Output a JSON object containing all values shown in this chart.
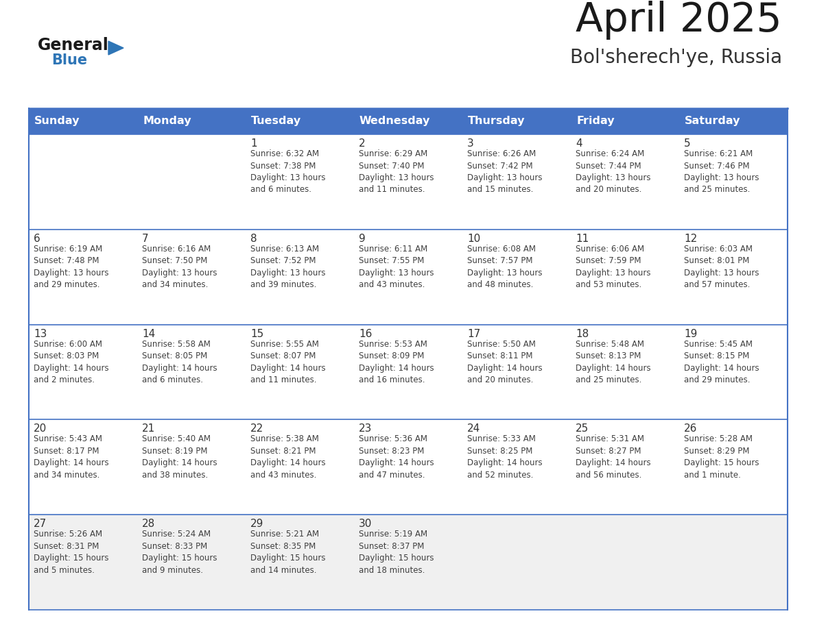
{
  "title": "April 2025",
  "subtitle": "Bol'sherech'ye, Russia",
  "days_of_week": [
    "Sunday",
    "Monday",
    "Tuesday",
    "Wednesday",
    "Thursday",
    "Friday",
    "Saturday"
  ],
  "header_bg": "#4472C4",
  "header_text": "#FFFFFF",
  "cell_bg_white": "#FFFFFF",
  "cell_bg_gray": "#F0F0F0",
  "row_border_color": "#4472C4",
  "outer_border_color": "#4472C4",
  "day_number_color": "#333333",
  "cell_text_color": "#404040",
  "title_color": "#1a1a1a",
  "subtitle_color": "#333333",
  "weeks": [
    [
      {
        "day": null,
        "info": null
      },
      {
        "day": null,
        "info": null
      },
      {
        "day": 1,
        "info": "Sunrise: 6:32 AM\nSunset: 7:38 PM\nDaylight: 13 hours\nand 6 minutes."
      },
      {
        "day": 2,
        "info": "Sunrise: 6:29 AM\nSunset: 7:40 PM\nDaylight: 13 hours\nand 11 minutes."
      },
      {
        "day": 3,
        "info": "Sunrise: 6:26 AM\nSunset: 7:42 PM\nDaylight: 13 hours\nand 15 minutes."
      },
      {
        "day": 4,
        "info": "Sunrise: 6:24 AM\nSunset: 7:44 PM\nDaylight: 13 hours\nand 20 minutes."
      },
      {
        "day": 5,
        "info": "Sunrise: 6:21 AM\nSunset: 7:46 PM\nDaylight: 13 hours\nand 25 minutes."
      }
    ],
    [
      {
        "day": 6,
        "info": "Sunrise: 6:19 AM\nSunset: 7:48 PM\nDaylight: 13 hours\nand 29 minutes."
      },
      {
        "day": 7,
        "info": "Sunrise: 6:16 AM\nSunset: 7:50 PM\nDaylight: 13 hours\nand 34 minutes."
      },
      {
        "day": 8,
        "info": "Sunrise: 6:13 AM\nSunset: 7:52 PM\nDaylight: 13 hours\nand 39 minutes."
      },
      {
        "day": 9,
        "info": "Sunrise: 6:11 AM\nSunset: 7:55 PM\nDaylight: 13 hours\nand 43 minutes."
      },
      {
        "day": 10,
        "info": "Sunrise: 6:08 AM\nSunset: 7:57 PM\nDaylight: 13 hours\nand 48 minutes."
      },
      {
        "day": 11,
        "info": "Sunrise: 6:06 AM\nSunset: 7:59 PM\nDaylight: 13 hours\nand 53 minutes."
      },
      {
        "day": 12,
        "info": "Sunrise: 6:03 AM\nSunset: 8:01 PM\nDaylight: 13 hours\nand 57 minutes."
      }
    ],
    [
      {
        "day": 13,
        "info": "Sunrise: 6:00 AM\nSunset: 8:03 PM\nDaylight: 14 hours\nand 2 minutes."
      },
      {
        "day": 14,
        "info": "Sunrise: 5:58 AM\nSunset: 8:05 PM\nDaylight: 14 hours\nand 6 minutes."
      },
      {
        "day": 15,
        "info": "Sunrise: 5:55 AM\nSunset: 8:07 PM\nDaylight: 14 hours\nand 11 minutes."
      },
      {
        "day": 16,
        "info": "Sunrise: 5:53 AM\nSunset: 8:09 PM\nDaylight: 14 hours\nand 16 minutes."
      },
      {
        "day": 17,
        "info": "Sunrise: 5:50 AM\nSunset: 8:11 PM\nDaylight: 14 hours\nand 20 minutes."
      },
      {
        "day": 18,
        "info": "Sunrise: 5:48 AM\nSunset: 8:13 PM\nDaylight: 14 hours\nand 25 minutes."
      },
      {
        "day": 19,
        "info": "Sunrise: 5:45 AM\nSunset: 8:15 PM\nDaylight: 14 hours\nand 29 minutes."
      }
    ],
    [
      {
        "day": 20,
        "info": "Sunrise: 5:43 AM\nSunset: 8:17 PM\nDaylight: 14 hours\nand 34 minutes."
      },
      {
        "day": 21,
        "info": "Sunrise: 5:40 AM\nSunset: 8:19 PM\nDaylight: 14 hours\nand 38 minutes."
      },
      {
        "day": 22,
        "info": "Sunrise: 5:38 AM\nSunset: 8:21 PM\nDaylight: 14 hours\nand 43 minutes."
      },
      {
        "day": 23,
        "info": "Sunrise: 5:36 AM\nSunset: 8:23 PM\nDaylight: 14 hours\nand 47 minutes."
      },
      {
        "day": 24,
        "info": "Sunrise: 5:33 AM\nSunset: 8:25 PM\nDaylight: 14 hours\nand 52 minutes."
      },
      {
        "day": 25,
        "info": "Sunrise: 5:31 AM\nSunset: 8:27 PM\nDaylight: 14 hours\nand 56 minutes."
      },
      {
        "day": 26,
        "info": "Sunrise: 5:28 AM\nSunset: 8:29 PM\nDaylight: 15 hours\nand 1 minute."
      }
    ],
    [
      {
        "day": 27,
        "info": "Sunrise: 5:26 AM\nSunset: 8:31 PM\nDaylight: 15 hours\nand 5 minutes."
      },
      {
        "day": 28,
        "info": "Sunrise: 5:24 AM\nSunset: 8:33 PM\nDaylight: 15 hours\nand 9 minutes."
      },
      {
        "day": 29,
        "info": "Sunrise: 5:21 AM\nSunset: 8:35 PM\nDaylight: 15 hours\nand 14 minutes."
      },
      {
        "day": 30,
        "info": "Sunrise: 5:19 AM\nSunset: 8:37 PM\nDaylight: 15 hours\nand 18 minutes."
      },
      {
        "day": null,
        "info": null
      },
      {
        "day": null,
        "info": null
      },
      {
        "day": null,
        "info": null
      }
    ]
  ],
  "row_bg_colors": [
    "#FFFFFF",
    "#FFFFFF",
    "#FFFFFF",
    "#FFFFFF",
    "#F0F0F0"
  ]
}
